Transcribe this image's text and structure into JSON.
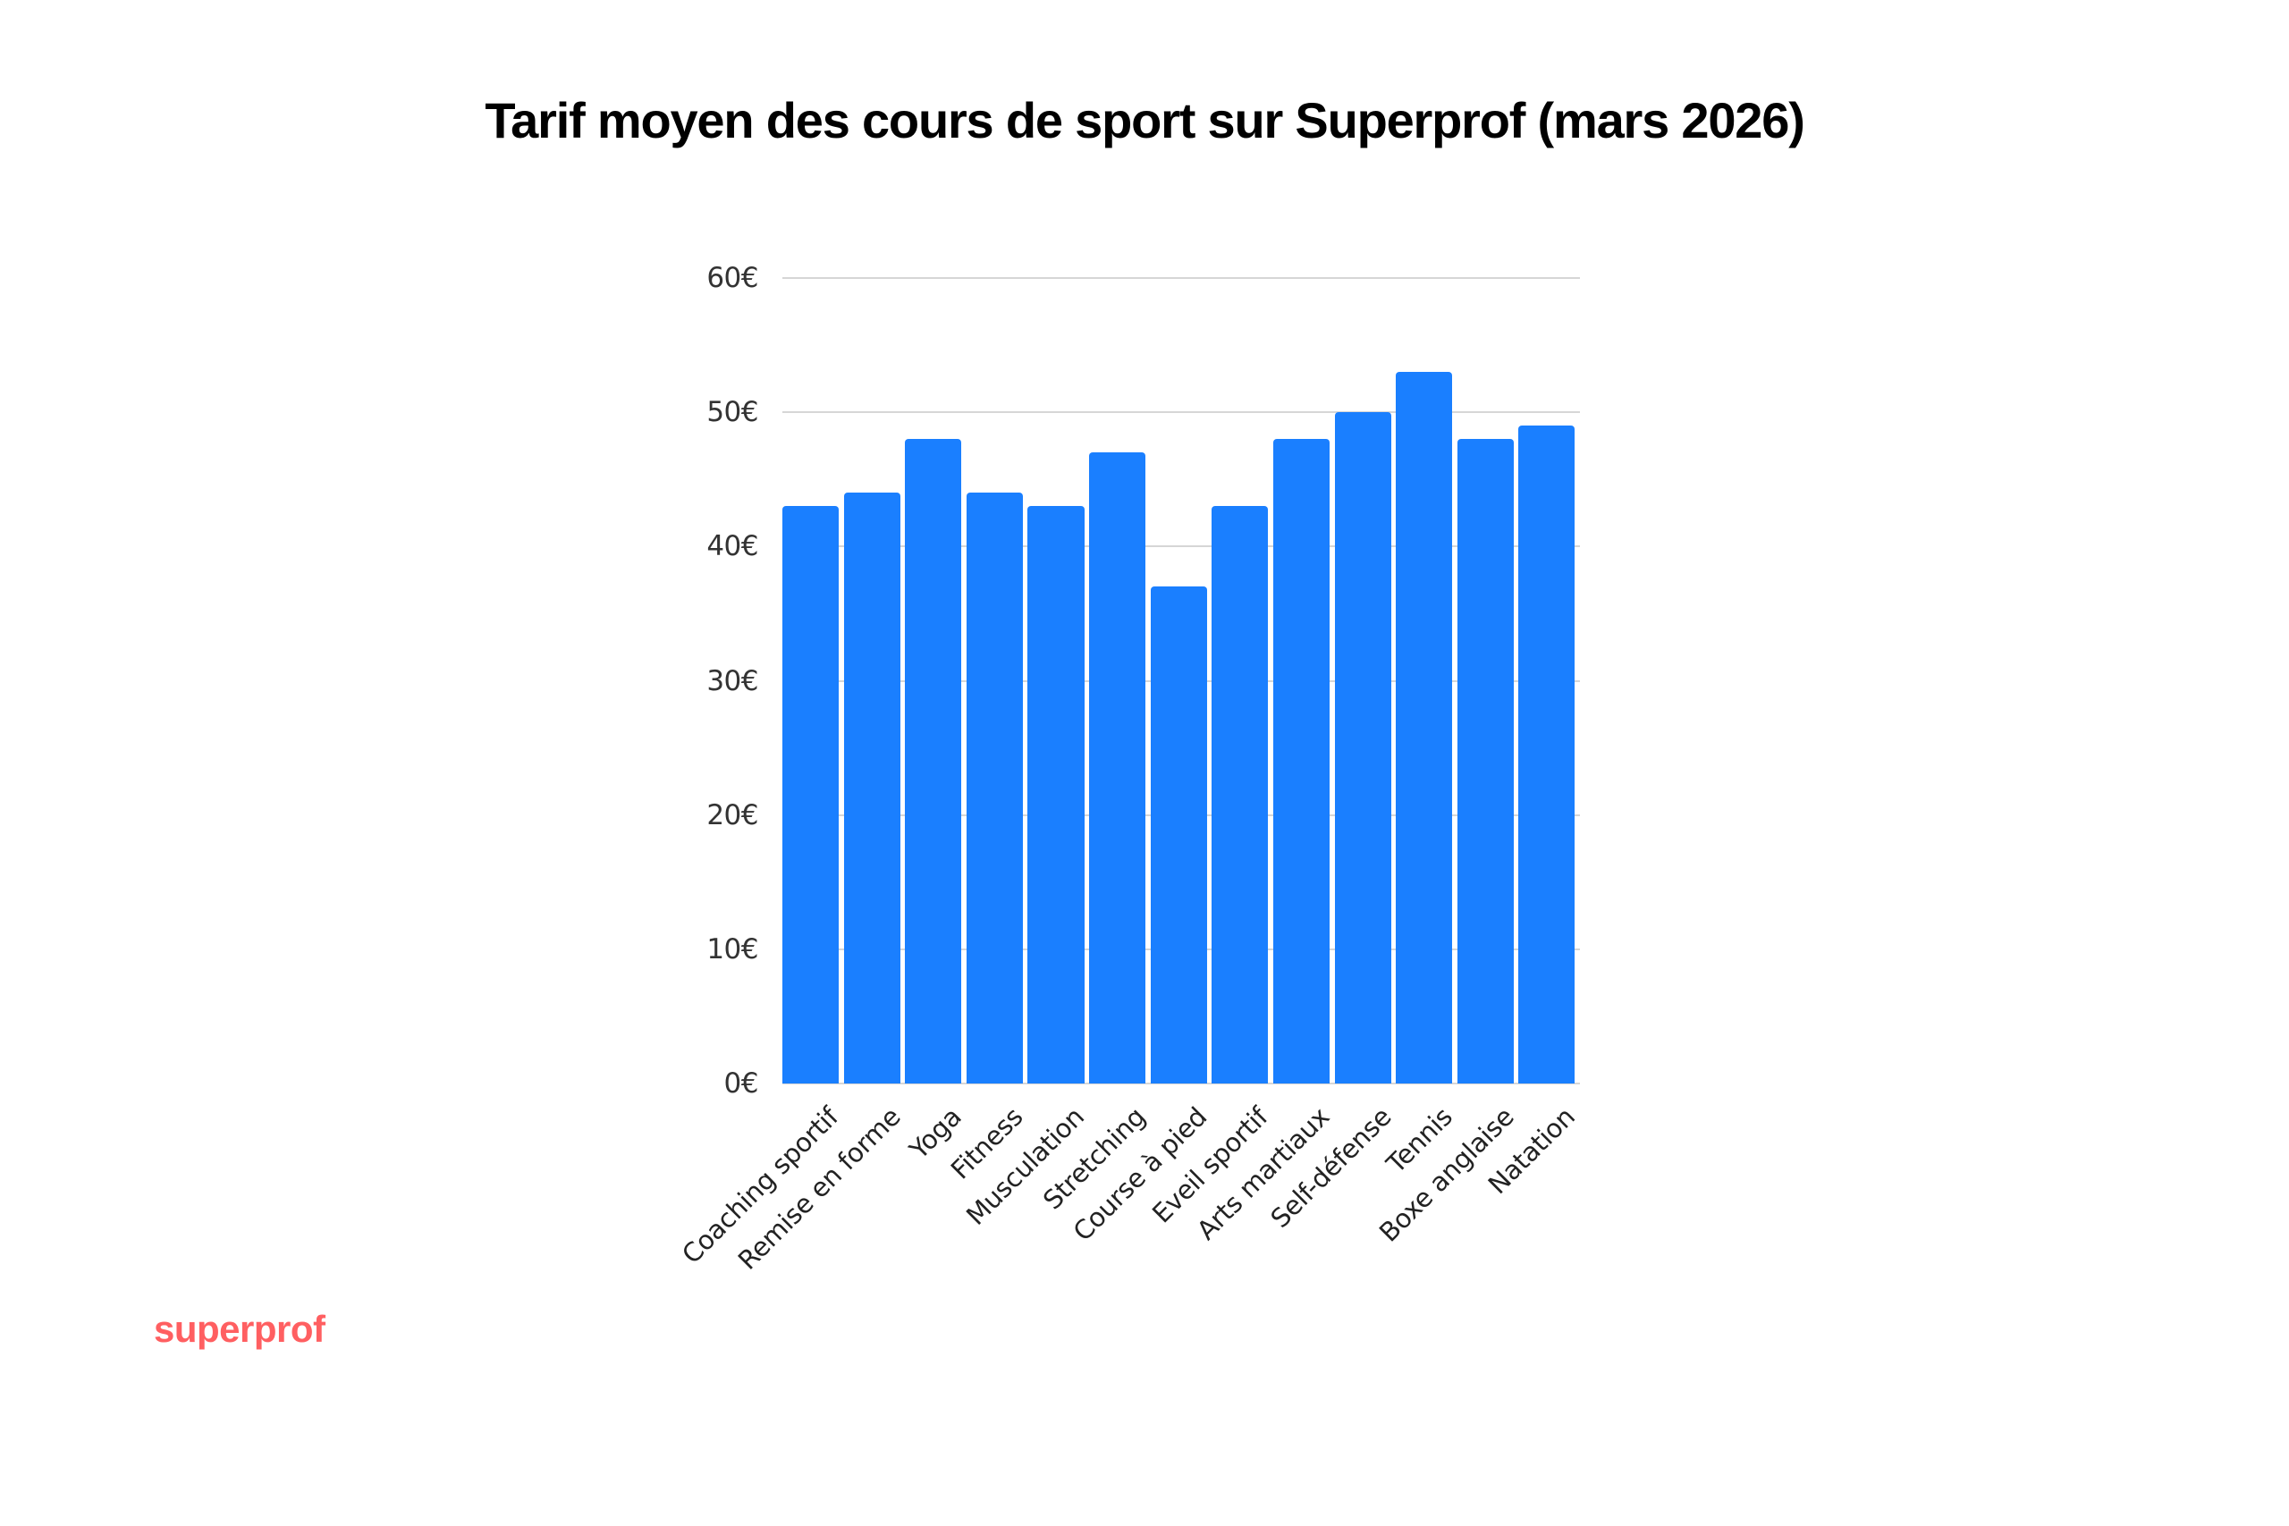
{
  "title": "Tarif moyen des cours de sport sur Superprof (mars 2026)",
  "logo": {
    "text": "superprof",
    "color": "#ff5f61"
  },
  "colors": {
    "bar": "#1a7fff",
    "grid": "#d6d6d6",
    "axis_text": "#333333"
  },
  "y_ticks": [
    "0€",
    "10€",
    "20€",
    "30€",
    "40€",
    "50€",
    "60€"
  ],
  "chart_data": {
    "type": "bar",
    "title": "Tarif moyen des cours de sport sur Superprof (mars 2026)",
    "xlabel": "",
    "ylabel": "",
    "categories": [
      "Coaching sportif",
      "Remise en forme",
      "Yoga",
      "Fitness",
      "Musculation",
      "Stretching",
      "Course à pied",
      "Eveil sportif",
      "Arts martiaux",
      "Self-défense",
      "Tennis",
      "Boxe anglaise",
      "Natation"
    ],
    "values": [
      43,
      44,
      48,
      44,
      43,
      47,
      37,
      43,
      48,
      50,
      53,
      48,
      49
    ],
    "unit": "€",
    "ylim": [
      0,
      60
    ],
    "yticks": [
      0,
      10,
      20,
      30,
      40,
      50,
      60
    ],
    "grid": true,
    "legend": null,
    "x_label_rotation": -45
  }
}
